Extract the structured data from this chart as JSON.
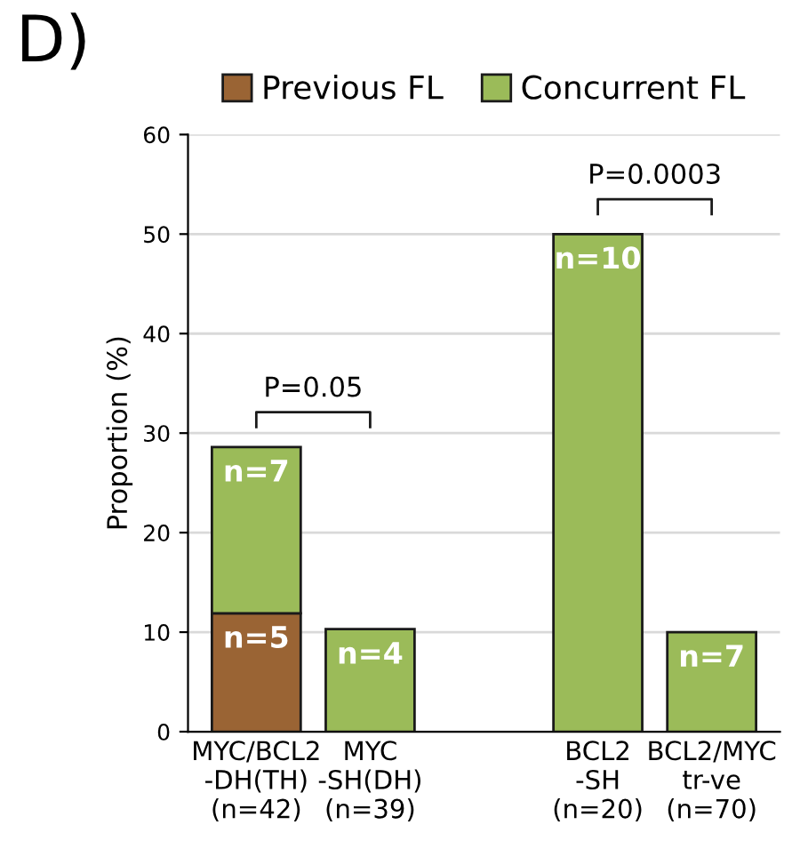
{
  "chart_data": {
    "type": "bar",
    "title": "D)",
    "ylabel": "Proportion (%)",
    "categories": [
      "MYC/BCL2\n-DH(TH)\n(n=42)",
      "MYC\n-SH(DH)\n(n=39)",
      null,
      "BCL2\n-SH\n(n=20)",
      "BCL2/MYC\ntr-ve\n(n=70)"
    ],
    "stacked": true,
    "series": [
      {
        "name": "Previous FL",
        "color": "#9a6434",
        "values": [
          11.9,
          null,
          null,
          null,
          null
        ]
      },
      {
        "name": "Concurrent FL",
        "color": "#9bbb59",
        "values": [
          16.7,
          10.3,
          null,
          50,
          10
        ]
      }
    ],
    "ylim": [
      0,
      60
    ],
    "yticks": [
      0,
      10,
      20,
      30,
      40,
      50,
      60
    ],
    "grid": "y",
    "legend": "top",
    "annotations": [
      "P=0.05",
      "P=0.0003",
      {
        "text": "n=5",
        "x": "MYC/BCL2\n-DH(TH)\n(n=42)",
        "y": 11.9
      },
      {
        "text": "n=7",
        "x": "MYC/BCL2\n-DH(TH)\n(n=42)",
        "y": 28.6
      },
      {
        "text": "n=4",
        "x": "MYC\n-SH(DH)\n(n=39)",
        "y": 10.3
      },
      {
        "text": "n=10",
        "x": "BCL2\n-SH\n(n=20)",
        "y": 50
      },
      {
        "text": "n=7",
        "x": "BCL2/MYC\ntr-ve\n(n=70)",
        "y": 10
      }
    ]
  }
}
